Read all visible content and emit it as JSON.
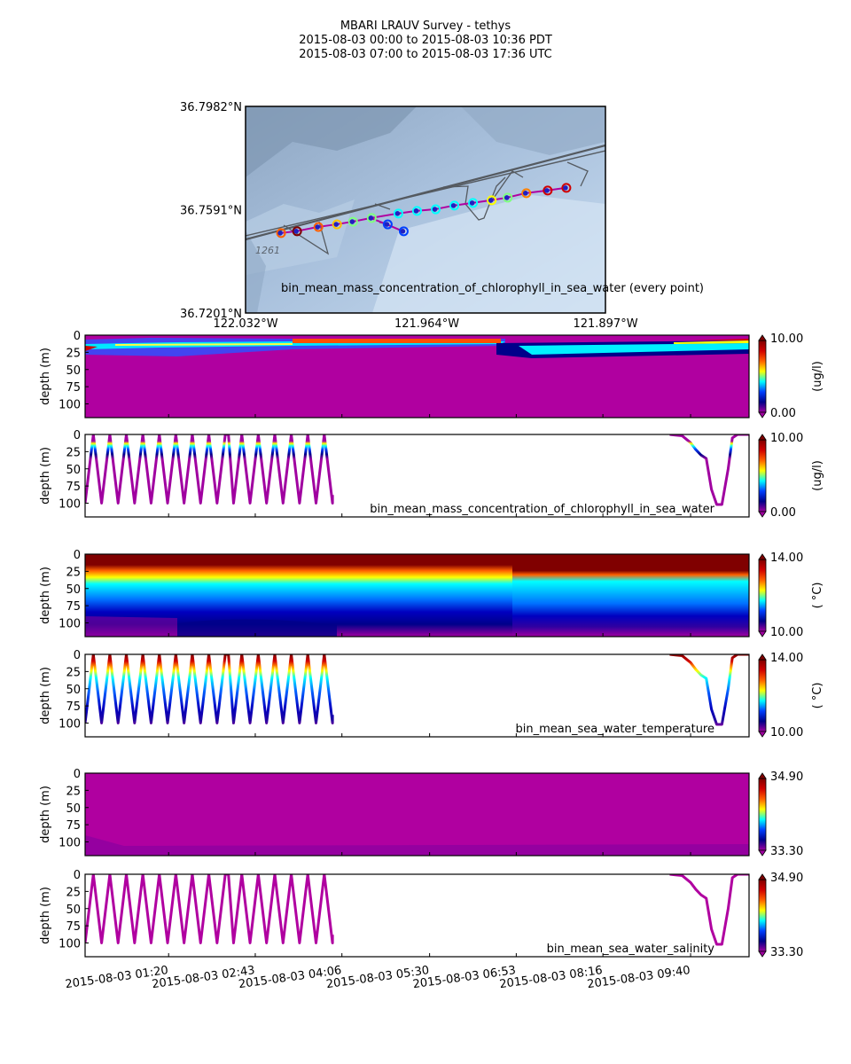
{
  "title": {
    "line1": "MBARI LRAUV Survey - tethys",
    "line2": "2015-08-03 00:00  to  2015-08-03 10:36 PDT",
    "line3": "2015-08-03 07:00  to  2015-08-03 17:36 UTC"
  },
  "map": {
    "caption": "bin_mean_mass_concentration_of_chlorophyll_in_sea_water (every point)",
    "contour_label": "1261",
    "lat_ticks": [
      "36.7982°N",
      "36.7591°N",
      "36.7201°N"
    ],
    "lat_values": [
      36.7982,
      36.7591,
      36.7201
    ],
    "lon_ticks": [
      "122.032°W",
      "121.964°W",
      "121.897°W"
    ],
    "lon_values": [
      -122.032,
      -121.964,
      -121.897
    ],
    "track_color": "#b000a0",
    "points": [
      {
        "lon": -122.019,
        "lat": 36.7503,
        "c": "#ff6000"
      },
      {
        "lon": -122.013,
        "lat": 36.751,
        "c": "#800000"
      },
      {
        "lon": -122.005,
        "lat": 36.7526,
        "c": "#ff6000"
      },
      {
        "lon": -121.998,
        "lat": 36.7536,
        "c": "#ffc000"
      },
      {
        "lon": -121.992,
        "lat": 36.7546,
        "c": "#80ff80"
      },
      {
        "lon": -121.985,
        "lat": 36.756,
        "c": "#80ff80"
      },
      {
        "lon": -121.979,
        "lat": 36.7536,
        "c": "#0040ff"
      },
      {
        "lon": -121.973,
        "lat": 36.751,
        "c": "#0040ff"
      },
      {
        "lon": -121.975,
        "lat": 36.7577,
        "c": "#00ffff"
      },
      {
        "lon": -121.968,
        "lat": 36.7587,
        "c": "#00ffff"
      },
      {
        "lon": -121.961,
        "lat": 36.7593,
        "c": "#00ffff"
      },
      {
        "lon": -121.954,
        "lat": 36.7607,
        "c": "#00ffff"
      },
      {
        "lon": -121.947,
        "lat": 36.7617,
        "c": "#00ffff"
      },
      {
        "lon": -121.94,
        "lat": 36.7627,
        "c": "#ffff00"
      },
      {
        "lon": -121.934,
        "lat": 36.7637,
        "c": "#80ff80"
      },
      {
        "lon": -121.927,
        "lat": 36.7654,
        "c": "#ff8000"
      },
      {
        "lon": -121.919,
        "lat": 36.7664,
        "c": "#d00000"
      },
      {
        "lon": -121.912,
        "lat": 36.7674,
        "c": "#d00000"
      }
    ]
  },
  "chart_data": {
    "type": "heatmap",
    "x_range_minutes": [
      0,
      636
    ],
    "x_ticks": [
      {
        "min": 80,
        "label": "2015-08-03 01:20"
      },
      {
        "min": 163,
        "label": "2015-08-03 02:43"
      },
      {
        "min": 246,
        "label": "2015-08-03 04:06"
      },
      {
        "min": 330,
        "label": "2015-08-03 05:30"
      },
      {
        "min": 413,
        "label": "2015-08-03 06:53"
      },
      {
        "min": 496,
        "label": "2015-08-03 08:16"
      },
      {
        "min": 580,
        "label": "2015-08-03 09:40"
      }
    ],
    "ylabel": "depth (m)",
    "ylim": [
      120,
      0
    ],
    "y_ticks": [
      "0",
      "25",
      "50",
      "75",
      "100"
    ],
    "y_values": [
      0,
      25,
      50,
      75,
      100
    ],
    "colormap": [
      "#a000a0",
      "#00008a",
      "#0040ff",
      "#00ffff",
      "#ffff00",
      "#ff6000",
      "#d00000",
      "#800000"
    ],
    "profile": {
      "yoyo": {
        "start_min": 0,
        "end_min": 237,
        "cycles": 15,
        "max_depth": 100,
        "surface_pause_min": [
          125,
          135
        ]
      },
      "tail": [
        [
          560,
          0
        ],
        [
          572,
          2
        ],
        [
          580,
          12
        ],
        [
          585,
          22
        ],
        [
          590,
          30
        ],
        [
          595,
          35
        ],
        [
          600,
          80
        ],
        [
          605,
          102
        ],
        [
          610,
          102
        ],
        [
          616,
          50
        ],
        [
          620,
          5
        ],
        [
          625,
          0
        ],
        [
          636,
          0
        ]
      ]
    },
    "panels": [
      {
        "kind": "contour",
        "variable": "chlorophyll",
        "units": "(ug/l)",
        "clim": [
          "0.00",
          "10.00"
        ]
      },
      {
        "kind": "profile",
        "variable": "chlorophyll",
        "units": "(ug/l)",
        "clim": [
          "0.00",
          "10.00"
        ],
        "label": "bin_mean_mass_concentration_of_chlorophyll_in_sea_water"
      },
      {
        "kind": "contour",
        "variable": "temperature",
        "units": "( °C)",
        "clim": [
          "10.00",
          "14.00"
        ]
      },
      {
        "kind": "profile",
        "variable": "temperature",
        "units": "( °C)",
        "clim": [
          "10.00",
          "14.00"
        ],
        "label": "bin_mean_sea_water_temperature"
      },
      {
        "kind": "contour",
        "variable": "salinity",
        "units": "",
        "clim": [
          "33.30",
          "34.90"
        ]
      },
      {
        "kind": "profile",
        "variable": "salinity",
        "units": "",
        "clim": [
          "33.30",
          "34.90"
        ],
        "label": "bin_mean_sea_water_salinity"
      }
    ]
  }
}
